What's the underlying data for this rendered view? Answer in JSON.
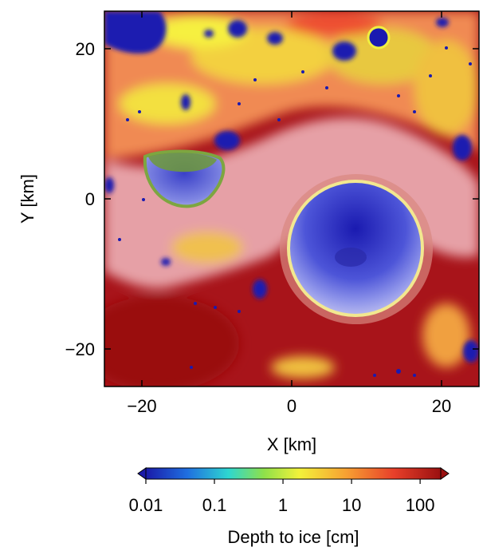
{
  "chart_data": {
    "type": "heatmap",
    "title": "",
    "xlabel": "X [km]",
    "ylabel": "Y [km]",
    "xlim": [
      -25,
      25
    ],
    "ylim": [
      -25,
      25
    ],
    "x_ticks": [
      -20,
      0,
      20
    ],
    "x_tick_labels": [
      "−20",
      "0",
      "20"
    ],
    "y_ticks": [
      20,
      0,
      -20
    ],
    "y_tick_labels": [
      "20",
      "0",
      "−20"
    ],
    "grid": false,
    "colorbar": {
      "label": "Depth to ice [cm]",
      "scale": "log",
      "range": [
        0.01,
        200
      ],
      "ticks": [
        0.01,
        0.1,
        1,
        10,
        100
      ],
      "tick_labels": [
        "0.01",
        "0.1",
        "1",
        "10",
        "100"
      ],
      "colors": [
        "#1a1aa8",
        "#1f6fe0",
        "#2ed6d0",
        "#8ee04a",
        "#f2f23a",
        "#f7a032",
        "#e8402a",
        "#9a1010"
      ],
      "extend": "both"
    },
    "features": [
      {
        "name": "main crater",
        "x": 8,
        "y": -6,
        "depth": "0.01"
      },
      {
        "name": "western crater",
        "x": -15,
        "y": 2,
        "depth": "0.01"
      },
      {
        "name": "small crater",
        "x": 11,
        "y": 22,
        "depth": "0.01"
      }
    ]
  }
}
